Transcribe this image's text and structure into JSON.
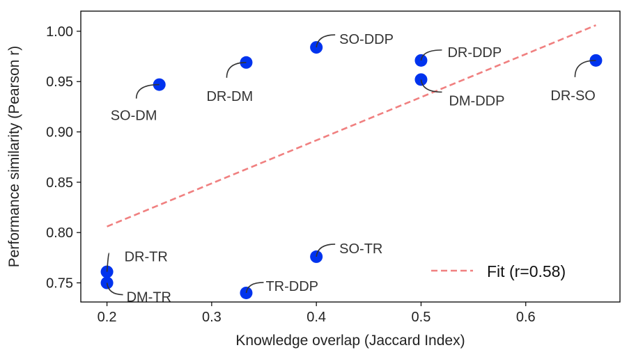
{
  "chart_data": {
    "type": "scatter",
    "title": "",
    "xlabel": "Knowledge overlap (Jaccard Index)",
    "ylabel": "Performance similarity (Pearson r)",
    "xlim": [
      0.175,
      0.69
    ],
    "ylim": [
      0.731,
      1.02
    ],
    "xticks": [
      0.2,
      0.3,
      0.4,
      0.5,
      0.6
    ],
    "xtick_labels": [
      "0.2",
      "0.3",
      "0.4",
      "0.5",
      "0.6"
    ],
    "yticks": [
      0.75,
      0.8,
      0.85,
      0.9,
      0.95,
      1.0
    ],
    "ytick_labels": [
      "0.75",
      "0.80",
      "0.85",
      "0.90",
      "0.95",
      "1.00"
    ],
    "grid": false,
    "legend_position": "lower-right",
    "colors": {
      "points": "#0033ee",
      "fit": "#f08080",
      "leader": "#333333",
      "text": "#222222"
    },
    "points": [
      {
        "label": "SO-DM",
        "x": 0.25,
        "y": 0.947
      },
      {
        "label": "DR-DM",
        "x": 0.333,
        "y": 0.969
      },
      {
        "label": "SO-DDP",
        "x": 0.4,
        "y": 0.984
      },
      {
        "label": "DR-DDP",
        "x": 0.5,
        "y": 0.971
      },
      {
        "label": "DM-DDP",
        "x": 0.5,
        "y": 0.952
      },
      {
        "label": "DR-SO",
        "x": 0.667,
        "y": 0.971
      },
      {
        "label": "DR-TR",
        "x": 0.2,
        "y": 0.761
      },
      {
        "label": "DM-TR",
        "x": 0.2,
        "y": 0.75
      },
      {
        "label": "TR-DDP",
        "x": 0.333,
        "y": 0.74
      },
      {
        "label": "SO-TR",
        "x": 0.4,
        "y": 0.776
      }
    ],
    "fit": {
      "label": "Fit (r=0.58)",
      "x": [
        0.2,
        0.667
      ],
      "y": [
        0.806,
        1.006
      ]
    }
  }
}
